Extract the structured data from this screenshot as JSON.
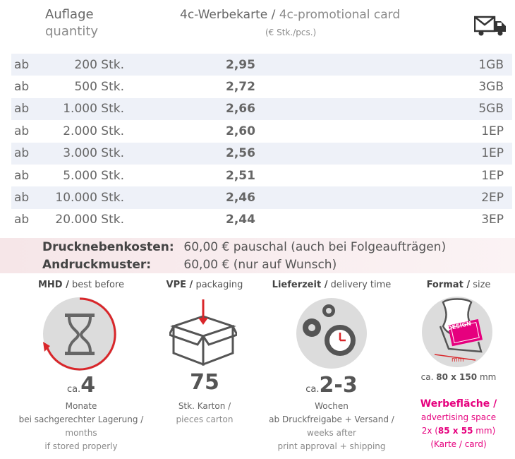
{
  "header": {
    "qty_de": "Auflage",
    "qty_en": "quantity",
    "product_de": "4c-Werbekarte /",
    "product_en": "4c-promotional card",
    "unit": "(€ Stk./pcs.)",
    "shipping_icon": "envelope-truck-icon"
  },
  "price_rows": [
    {
      "ab": "ab",
      "qty": "200 Stk.",
      "price": "2,95",
      "ship": "1GB"
    },
    {
      "ab": "ab",
      "qty": "500 Stk.",
      "price": "2,72",
      "ship": "3GB"
    },
    {
      "ab": "ab",
      "qty": "1.000 Stk.",
      "price": "2,66",
      "ship": "5GB"
    },
    {
      "ab": "ab",
      "qty": "2.000 Stk.",
      "price": "2,60",
      "ship": "1EP"
    },
    {
      "ab": "ab",
      "qty": "3.000 Stk.",
      "price": "2,56",
      "ship": "1EP"
    },
    {
      "ab": "ab",
      "qty": "5.000 Stk.",
      "price": "2,51",
      "ship": "1EP"
    },
    {
      "ab": "ab",
      "qty": "10.000 Stk.",
      "price": "2,46",
      "ship": "2EP"
    },
    {
      "ab": "ab",
      "qty": "20.000 Stk.",
      "price": "2,44",
      "ship": "3EP"
    }
  ],
  "costs": {
    "druck_label": "Drucknebenkosten:",
    "druck_value": "60,00 € pauschal (auch bei Folgeaufträgen)",
    "andruck_label": "Andruckmuster:",
    "andruck_value": "60,00 € (nur auf Wunsch)"
  },
  "features": {
    "mhd": {
      "title_de": "MHD /",
      "title_en": "best before",
      "prefix": "ca.",
      "value": "4",
      "line1": "Monate",
      "line2": "bei sachgerechter Lagerung /",
      "line3": "months",
      "line4": "if stored properly",
      "icon": "hourglass-icon"
    },
    "vpe": {
      "title_de": "VPE /",
      "title_en": "packaging",
      "value": "75",
      "line1": "Stk. Karton /",
      "line2": "pieces carton",
      "icon": "box-icon"
    },
    "lieferzeit": {
      "title_de": "Lieferzeit /",
      "title_en": "delivery time",
      "prefix": "ca.",
      "value": "2-3",
      "line1": "Wochen",
      "line2": "ab Druckfreigabe + Versand /",
      "line3": "weeks after",
      "line4": "print approval + shipping",
      "icon": "gears-clock-icon"
    },
    "format": {
      "title_de": "Format /",
      "title_en": "size",
      "size_prefix": "ca.",
      "size_value": "80 x 150",
      "size_unit": "mm",
      "card_text": "DESIGN",
      "dim_label": "mm",
      "werbe_title": "Werbefläche /",
      "werbe_line1": "advertising space",
      "werbe_line2_pre": "2x (",
      "werbe_line2_bold": "85 x 55",
      "werbe_line2_post": " mm)",
      "werbe_line3": "(Karte / card)",
      "icon": "card-holder-icon"
    }
  },
  "colors": {
    "accent": "#e6007e",
    "arrow_red": "#d9262a",
    "row_stripe": "#eef1f8",
    "costs_band": "#f6e6e8",
    "circle_gray": "#dcdcdc"
  }
}
